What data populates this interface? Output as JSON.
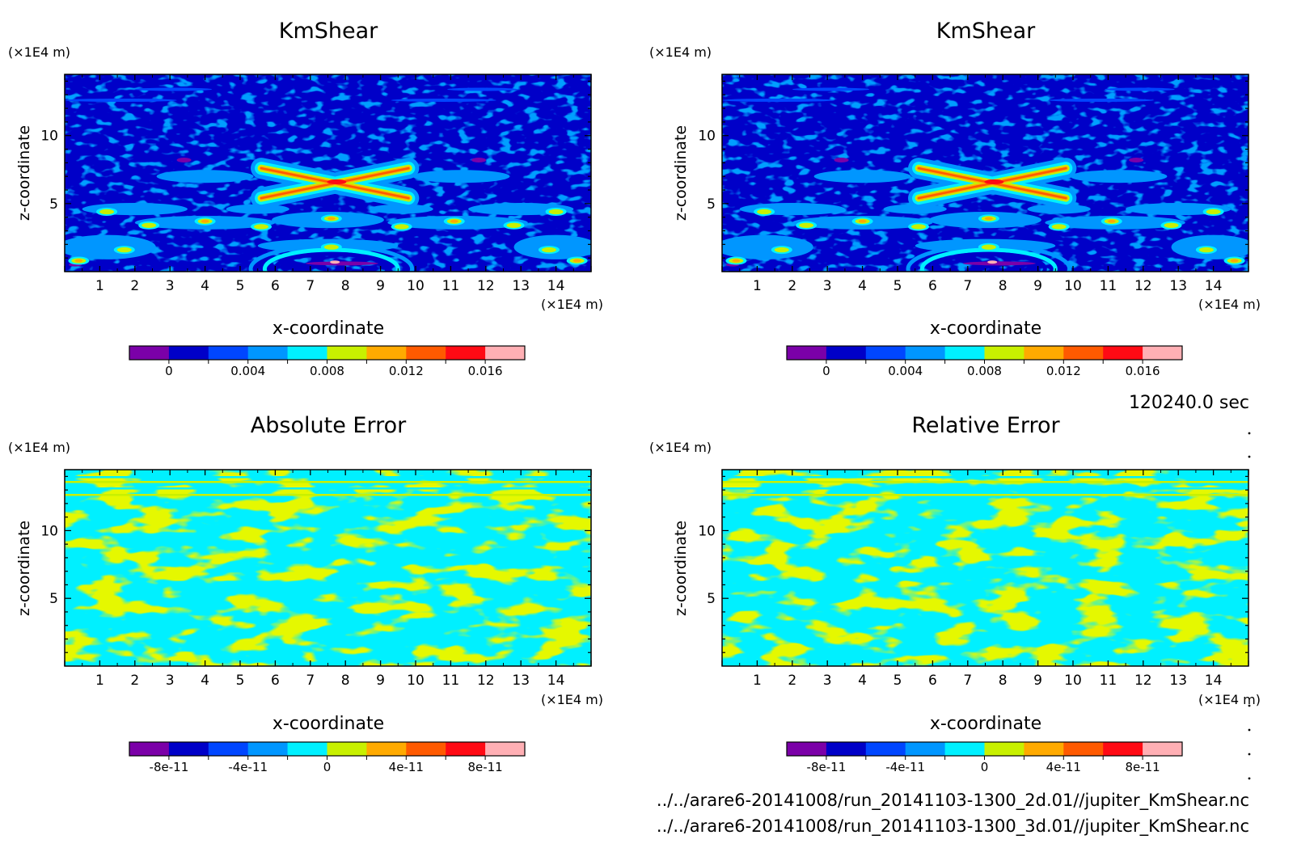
{
  "time_label": "120240.0 sec",
  "files": [
    "../../arare6-20141008/run_20141103-1300_2d.01//jupiter_KmShear.nc",
    "../../arare6-20141008/run_20141103-1300_3d.01//jupiter_KmShear.nc"
  ],
  "chart_data": [
    {
      "type": "heatmap",
      "title": "KmShear",
      "xlabel": "x-coordinate",
      "ylabel": "z-coordinate",
      "x_unit": "(×1E4 m)",
      "y_unit": "(×1E4 m)",
      "xlim": [
        0,
        15
      ],
      "ylim": [
        0,
        14.5
      ],
      "xticks": [
        "1",
        "2",
        "3",
        "4",
        "5",
        "6",
        "7",
        "8",
        "9",
        "10",
        "11",
        "12",
        "13",
        "14"
      ],
      "yticks": [
        "5",
        "10"
      ],
      "field": "kmshear",
      "colorbar": {
        "colors": [
          "#7b00a8",
          "#0000c8",
          "#0046ff",
          "#0096ff",
          "#00f0ff",
          "#c8f000",
          "#ffaa00",
          "#ff5a00",
          "#ff0a14",
          "#ffafb4"
        ],
        "ticks": [
          "0",
          "0.004",
          "0.008",
          "0.012",
          "0.016"
        ]
      }
    },
    {
      "type": "heatmap",
      "title": "KmShear",
      "xlabel": "x-coordinate",
      "ylabel": "z-coordinate",
      "x_unit": "(×1E4 m)",
      "y_unit": "(×1E4 m)",
      "xlim": [
        0,
        15
      ],
      "ylim": [
        0,
        14.5
      ],
      "xticks": [
        "1",
        "2",
        "3",
        "4",
        "5",
        "6",
        "7",
        "8",
        "9",
        "10",
        "11",
        "12",
        "13",
        "14"
      ],
      "yticks": [
        "5",
        "10"
      ],
      "field": "kmshear",
      "colorbar": {
        "colors": [
          "#7b00a8",
          "#0000c8",
          "#0046ff",
          "#0096ff",
          "#00f0ff",
          "#c8f000",
          "#ffaa00",
          "#ff5a00",
          "#ff0a14",
          "#ffafb4"
        ],
        "ticks": [
          "0",
          "0.004",
          "0.008",
          "0.012",
          "0.016"
        ]
      }
    },
    {
      "type": "heatmap",
      "title": "Absolute Error",
      "xlabel": "x-coordinate",
      "ylabel": "z-coordinate",
      "x_unit": "(×1E4 m)",
      "y_unit": "(×1E4 m)",
      "xlim": [
        0,
        15
      ],
      "ylim": [
        0,
        14.5
      ],
      "xticks": [
        "1",
        "2",
        "3",
        "4",
        "5",
        "6",
        "7",
        "8",
        "9",
        "10",
        "11",
        "12",
        "13",
        "14"
      ],
      "yticks": [
        "5",
        "10"
      ],
      "field": "error",
      "colorbar": {
        "colors": [
          "#7b00a8",
          "#0000c8",
          "#0046ff",
          "#0096ff",
          "#00f0ff",
          "#c8f000",
          "#ffaa00",
          "#ff5a00",
          "#ff0a14",
          "#ffafb4"
        ],
        "ticks": [
          "-8e-11",
          "-4e-11",
          "0",
          "4e-11",
          "8e-11"
        ]
      }
    },
    {
      "type": "heatmap",
      "title": "Relative Error",
      "xlabel": "x-coordinate",
      "ylabel": "z-coordinate",
      "x_unit": "(×1E4 m)",
      "y_unit": "(×1E4 m)",
      "xlim": [
        0,
        15
      ],
      "ylim": [
        0,
        14.5
      ],
      "xticks": [
        "1",
        "2",
        "3",
        "4",
        "5",
        "6",
        "7",
        "8",
        "9",
        "10",
        "11",
        "12",
        "13",
        "14"
      ],
      "yticks": [
        "5",
        "10"
      ],
      "field": "error",
      "colorbar": {
        "colors": [
          "#7b00a8",
          "#0000c8",
          "#0046ff",
          "#0096ff",
          "#00f0ff",
          "#c8f000",
          "#ffaa00",
          "#ff5a00",
          "#ff0a14",
          "#ffafb4"
        ],
        "ticks": [
          "-8e-11",
          "-4e-11",
          "0",
          "4e-11",
          "8e-11"
        ]
      }
    }
  ]
}
